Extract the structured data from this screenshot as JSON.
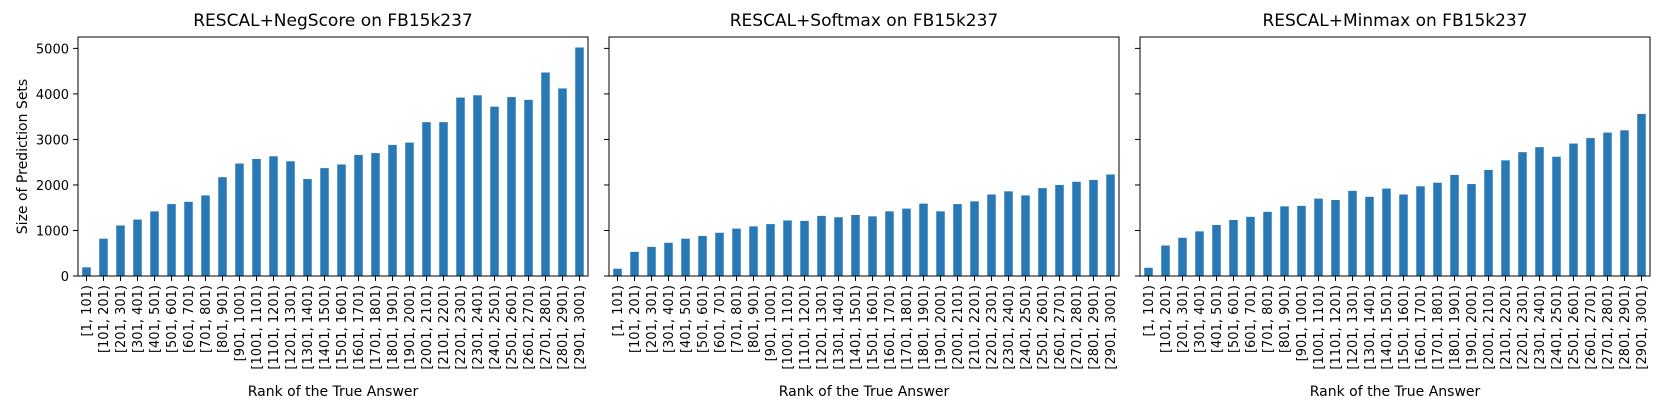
{
  "chart_data": [
    {
      "type": "bar",
      "title": "RESCAL+NegScore on FB15k237",
      "xlabel": "Rank of the True Answer",
      "ylabel": "Size of Prediction Sets",
      "ylim": [
        0,
        5250
      ],
      "yticks": [
        0,
        1000,
        2000,
        3000,
        4000,
        5000
      ],
      "grid": false,
      "bar_color": "#2878b5",
      "categories": [
        "[1, 101)",
        "[101, 201)",
        "[201, 301)",
        "[301, 401)",
        "[401, 501)",
        "[501, 601)",
        "[601, 701)",
        "[701, 801)",
        "[801, 901)",
        "[901, 1001)",
        "[1001, 1101)",
        "[1101, 1201)",
        "[1201, 1301)",
        "[1301, 1401)",
        "[1401, 1501)",
        "[1501, 1601)",
        "[1601, 1701)",
        "[1701, 1801)",
        "[1801, 1901)",
        "[1901, 2001)",
        "[2001, 2101)",
        "[2101, 2201)",
        "[2201, 2301)",
        "[2301, 2401)",
        "[2401, 2501)",
        "[2501, 2601)",
        "[2601, 2701)",
        "[2701, 2801)",
        "[2801, 2901)",
        "[2901, 3001)"
      ],
      "values": [
        190,
        820,
        1110,
        1240,
        1420,
        1580,
        1630,
        1770,
        2170,
        2470,
        2570,
        2630,
        2520,
        2130,
        2370,
        2450,
        2660,
        2700,
        2880,
        2930,
        3380,
        3380,
        3920,
        3970,
        3720,
        3930,
        3870,
        4470,
        4120,
        5020
      ]
    },
    {
      "type": "bar",
      "title": "RESCAL+Softmax on FB15k237",
      "xlabel": "Rank of the True Answer",
      "ylabel": "",
      "ylim": [
        0,
        5250
      ],
      "yticks": [
        0,
        1000,
        2000,
        3000,
        4000,
        5000
      ],
      "grid": false,
      "bar_color": "#2878b5",
      "categories": [
        "[1, 101)",
        "[101, 201)",
        "[201, 301)",
        "[301, 401)",
        "[401, 501)",
        "[501, 601)",
        "[601, 701)",
        "[701, 801)",
        "[801, 901)",
        "[901, 1001)",
        "[1001, 1101)",
        "[1101, 1201)",
        "[1201, 1301)",
        "[1301, 1401)",
        "[1401, 1501)",
        "[1501, 1601)",
        "[1601, 1701)",
        "[1701, 1801)",
        "[1801, 1901)",
        "[1901, 2001)",
        "[2001, 2101)",
        "[2101, 2201)",
        "[2201, 2301)",
        "[2301, 2401)",
        "[2401, 2501)",
        "[2501, 2601)",
        "[2601, 2701)",
        "[2701, 2801)",
        "[2801, 2901)",
        "[2901, 3001)"
      ],
      "values": [
        160,
        530,
        640,
        730,
        820,
        880,
        950,
        1040,
        1090,
        1140,
        1220,
        1210,
        1320,
        1290,
        1340,
        1310,
        1420,
        1480,
        1590,
        1420,
        1580,
        1640,
        1790,
        1860,
        1770,
        1930,
        2000,
        2070,
        2110,
        2230
      ]
    },
    {
      "type": "bar",
      "title": "RESCAL+Minmax on FB15k237",
      "xlabel": "Rank of the True Answer",
      "ylabel": "",
      "ylim": [
        0,
        5250
      ],
      "yticks": [
        0,
        1000,
        2000,
        3000,
        4000,
        5000
      ],
      "grid": false,
      "bar_color": "#2878b5",
      "categories": [
        "[1, 101)",
        "[101, 201)",
        "[201, 301)",
        "[301, 401)",
        "[401, 501)",
        "[501, 601)",
        "[601, 701)",
        "[701, 801)",
        "[801, 901)",
        "[901, 1001)",
        "[1001, 1101)",
        "[1101, 1201)",
        "[1201, 1301)",
        "[1301, 1401)",
        "[1401, 1501)",
        "[1501, 1601)",
        "[1601, 1701)",
        "[1701, 1801)",
        "[1801, 1901)",
        "[1901, 2001)",
        "[2001, 2101)",
        "[2101, 2201)",
        "[2201, 2301)",
        "[2301, 2401)",
        "[2401, 2501)",
        "[2501, 2601)",
        "[2601, 2701)",
        "[2701, 2801)",
        "[2801, 2901)",
        "[2901, 3001)"
      ],
      "values": [
        180,
        670,
        840,
        980,
        1120,
        1230,
        1300,
        1410,
        1530,
        1540,
        1700,
        1670,
        1870,
        1740,
        1920,
        1790,
        1970,
        2050,
        2220,
        2020,
        2330,
        2540,
        2720,
        2830,
        2620,
        2910,
        3030,
        3150,
        3200,
        3560
      ]
    }
  ]
}
